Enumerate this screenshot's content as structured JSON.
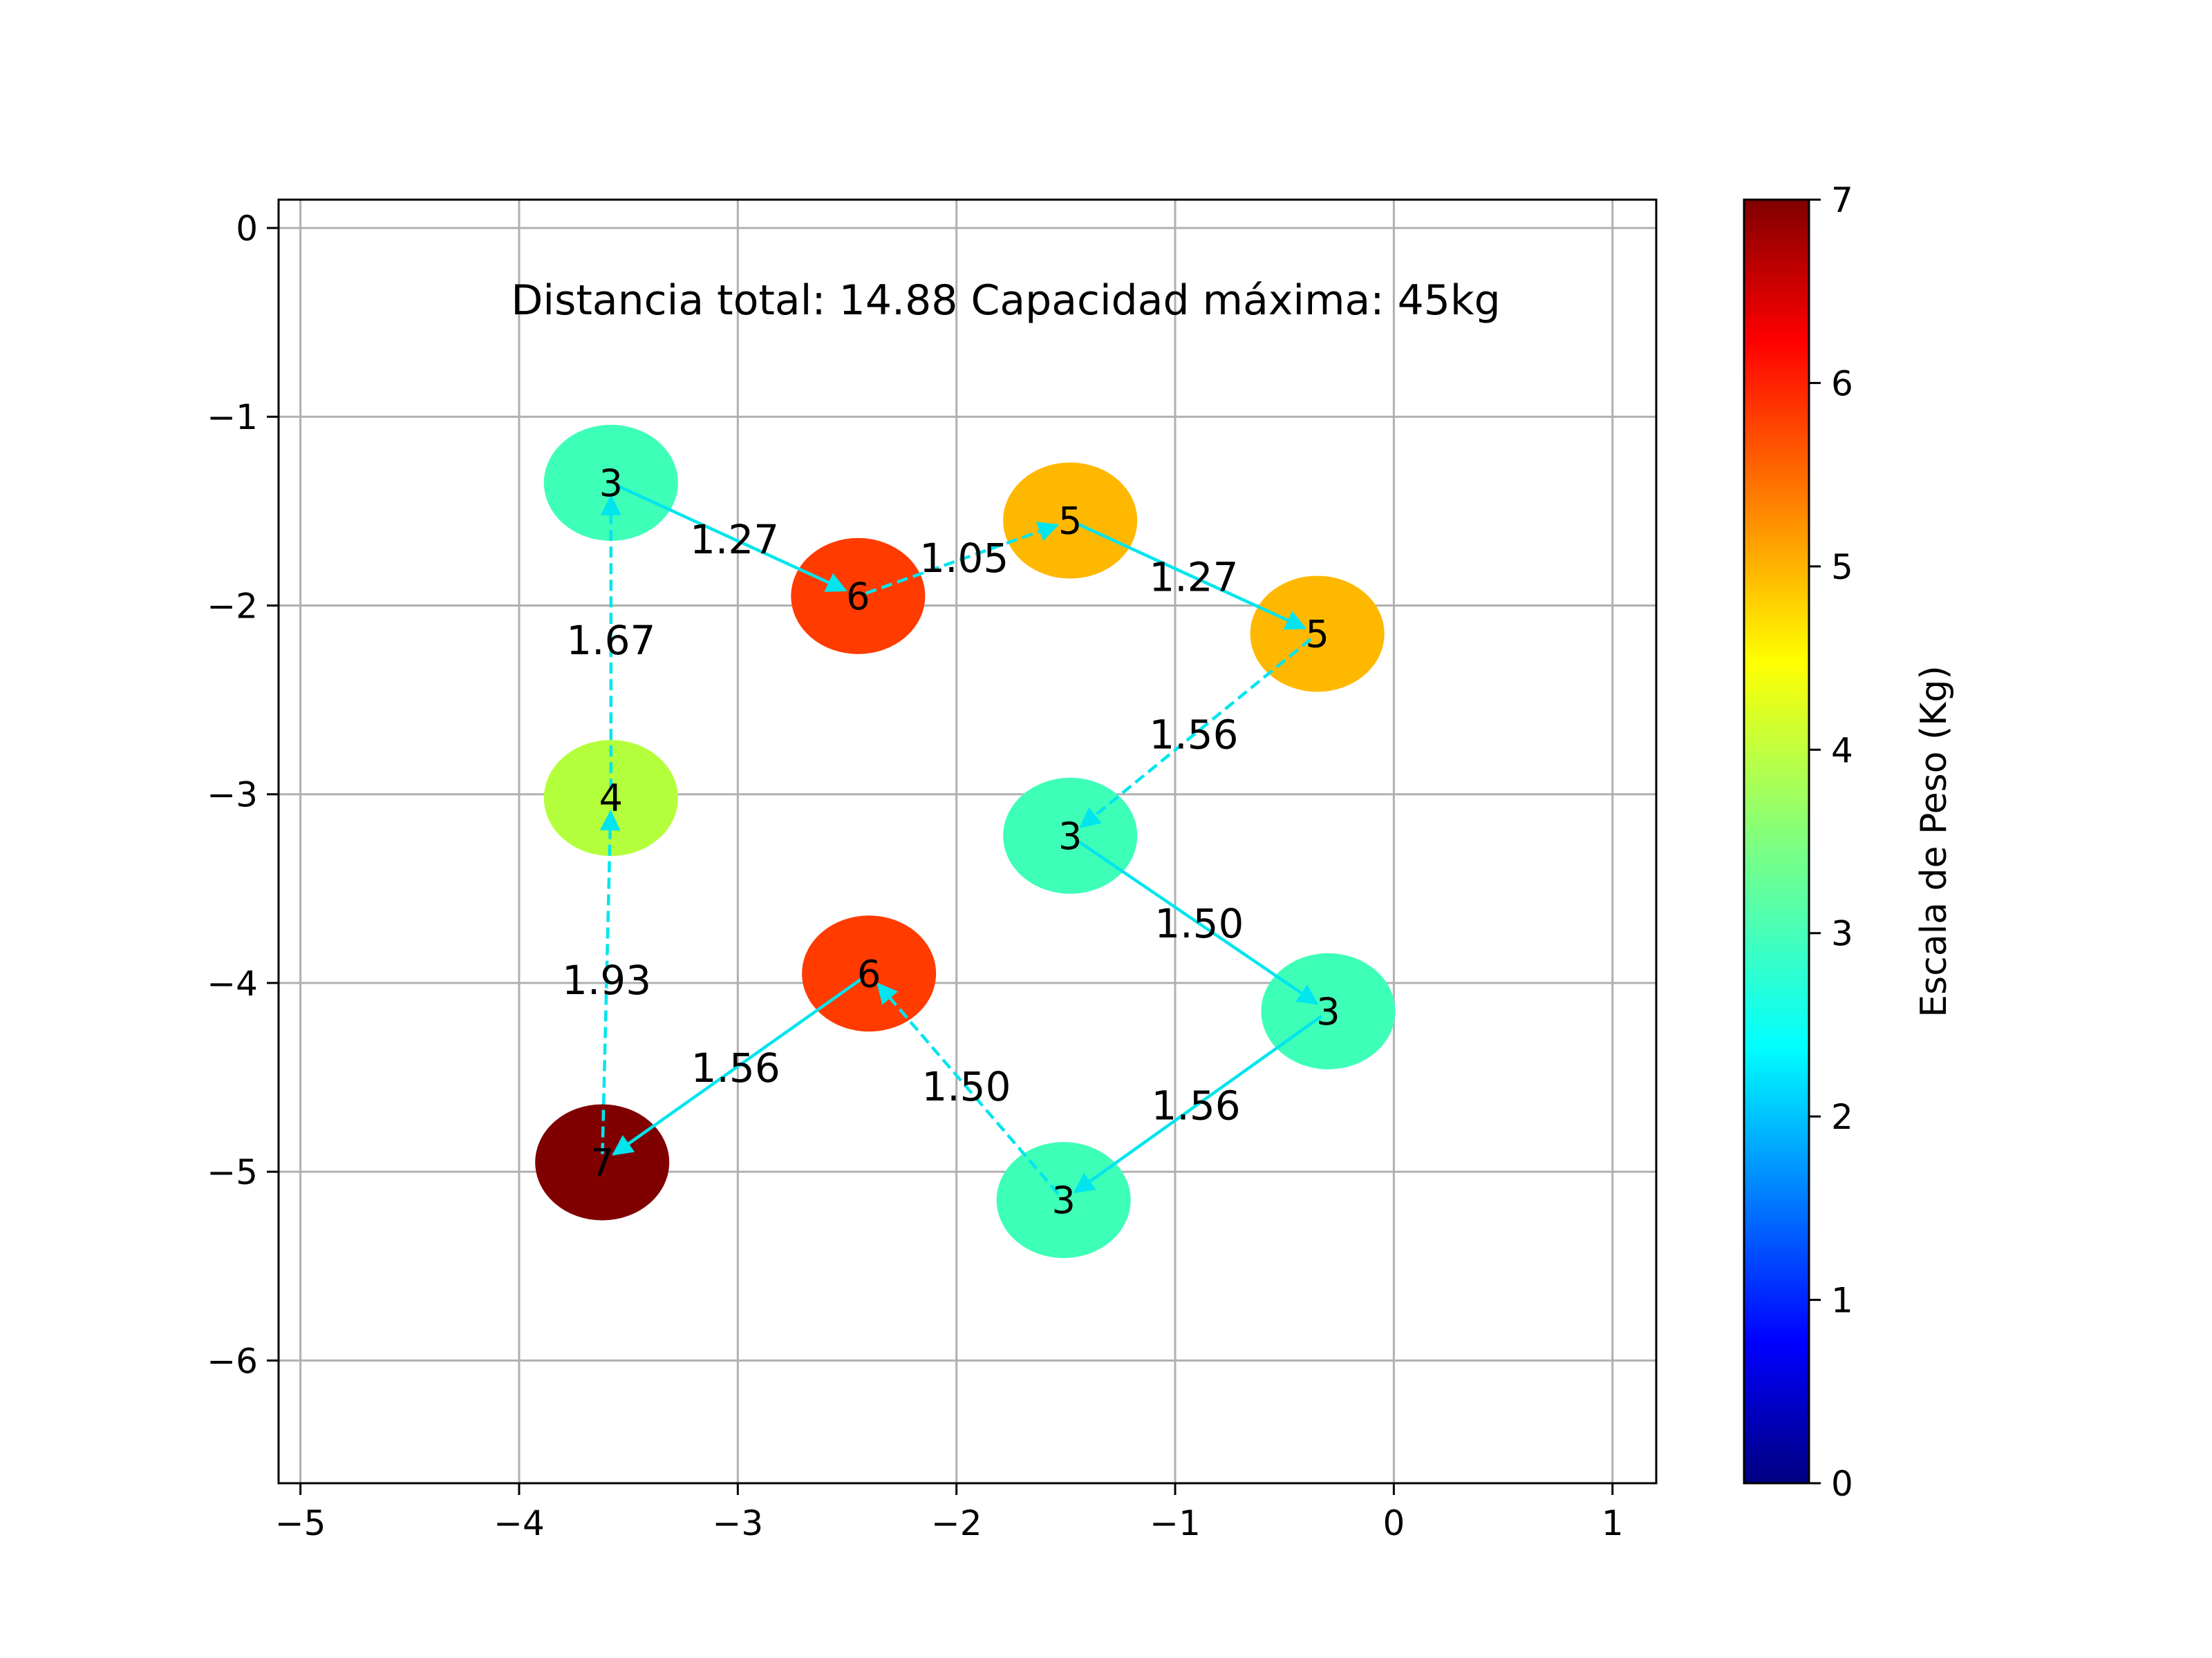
{
  "chart_data": {
    "type": "scatter",
    "title": "",
    "xlabel": "",
    "ylabel": "",
    "xlim": [
      -5.1,
      1.2
    ],
    "ylim": [
      -6.65,
      0.15
    ],
    "xticks": [
      -5,
      -4,
      -3,
      -2,
      -1,
      0,
      1
    ],
    "yticks": [
      0,
      -1,
      -2,
      -3,
      -4,
      -5,
      -6
    ],
    "xtick_labels": [
      "−5",
      "−4",
      "−3",
      "−2",
      "−1",
      "0",
      "1"
    ],
    "ytick_labels": [
      "0",
      "−1",
      "−2",
      "−3",
      "−4",
      "−5",
      "−6"
    ],
    "grid": true,
    "annotation": "Distancia total: 14.88  Capacidad máxima: 45kg",
    "colorbar": {
      "label": "Escala de Peso (Kg)",
      "range": [
        0,
        7
      ],
      "ticks": [
        "0",
        "1",
        "2",
        "3",
        "4",
        "5",
        "6",
        "7"
      ],
      "colormap": "jet"
    },
    "nodes": [
      {
        "x": -3.58,
        "y": -1.35,
        "weight": "3",
        "color": "#3effb8"
      },
      {
        "x": -2.45,
        "y": -1.95,
        "weight": "6",
        "color": "#ff3b00"
      },
      {
        "x": -1.48,
        "y": -1.55,
        "weight": "5",
        "color": "#ffb800"
      },
      {
        "x": -0.35,
        "y": -2.15,
        "weight": "5",
        "color": "#ffb800"
      },
      {
        "x": -1.48,
        "y": -3.22,
        "weight": "3",
        "color": "#3effb8"
      },
      {
        "x": -0.3,
        "y": -4.15,
        "weight": "3",
        "color": "#3effb8"
      },
      {
        "x": -1.51,
        "y": -5.15,
        "weight": "3",
        "color": "#3effb8"
      },
      {
        "x": -2.4,
        "y": -3.95,
        "weight": "6",
        "color": "#ff3b00"
      },
      {
        "x": -3.62,
        "y": -4.95,
        "weight": "7",
        "color": "#800000"
      },
      {
        "x": -3.58,
        "y": -3.02,
        "weight": "4",
        "color": "#b4ff3b"
      }
    ],
    "edges": [
      {
        "from": 0,
        "to": 1,
        "label": "1.27",
        "style": "solid"
      },
      {
        "from": 1,
        "to": 2,
        "label": "1.05",
        "style": "dashed"
      },
      {
        "from": 2,
        "to": 3,
        "label": "1.27",
        "style": "solid"
      },
      {
        "from": 3,
        "to": 4,
        "label": "1.56",
        "style": "dashed"
      },
      {
        "from": 4,
        "to": 5,
        "label": "1.50",
        "style": "solid"
      },
      {
        "from": 5,
        "to": 6,
        "label": "1.56",
        "style": "solid"
      },
      {
        "from": 6,
        "to": 7,
        "label": "1.50",
        "style": "dashed"
      },
      {
        "from": 7,
        "to": 8,
        "label": "1.56",
        "style": "solid"
      },
      {
        "from": 8,
        "to": 9,
        "label": "1.93",
        "style": "dashed"
      },
      {
        "from": 9,
        "to": 0,
        "label": "1.67",
        "style": "dashed"
      }
    ],
    "edge_color": "#00e5ee"
  }
}
